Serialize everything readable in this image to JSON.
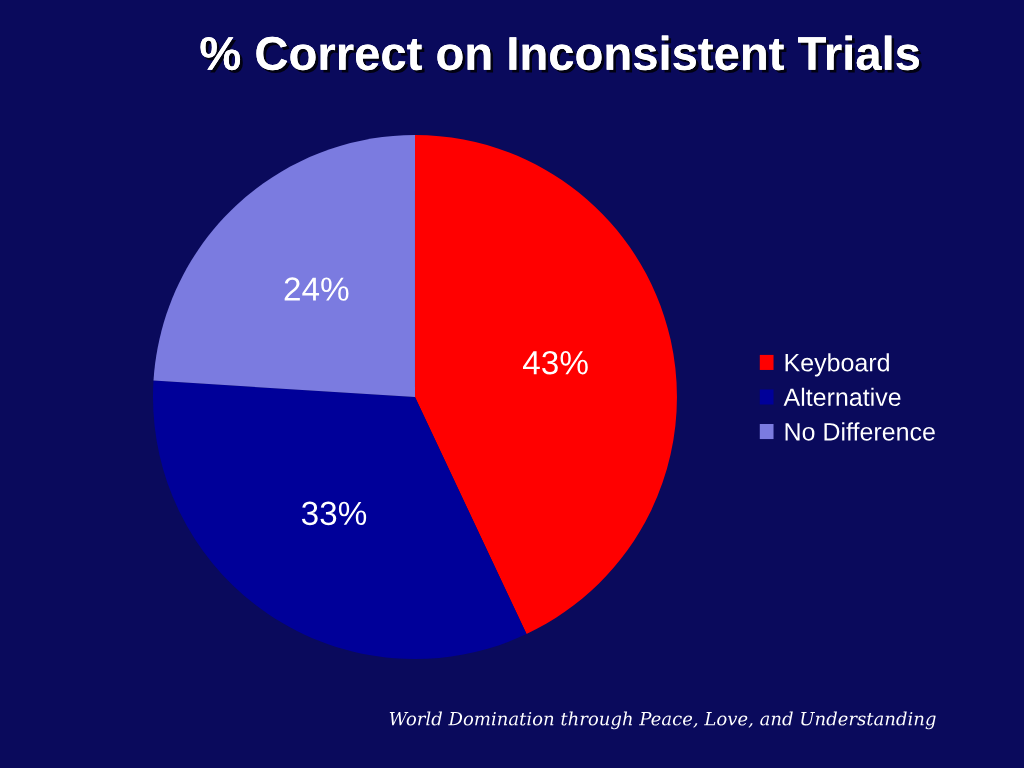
{
  "chart_data": {
    "type": "pie",
    "title": "% Correct on Inconsistent Trials",
    "categories": [
      "Keyboard",
      "Alternative",
      "No Difference"
    ],
    "values": [
      43,
      33,
      24
    ],
    "colors": [
      "#ff0000",
      "#000099",
      "#7b7be0"
    ],
    "value_labels": [
      "43%",
      "33%",
      "24%"
    ],
    "legend": "right",
    "annotations": [
      "World Domination through Peace, Love, and Understanding"
    ]
  }
}
